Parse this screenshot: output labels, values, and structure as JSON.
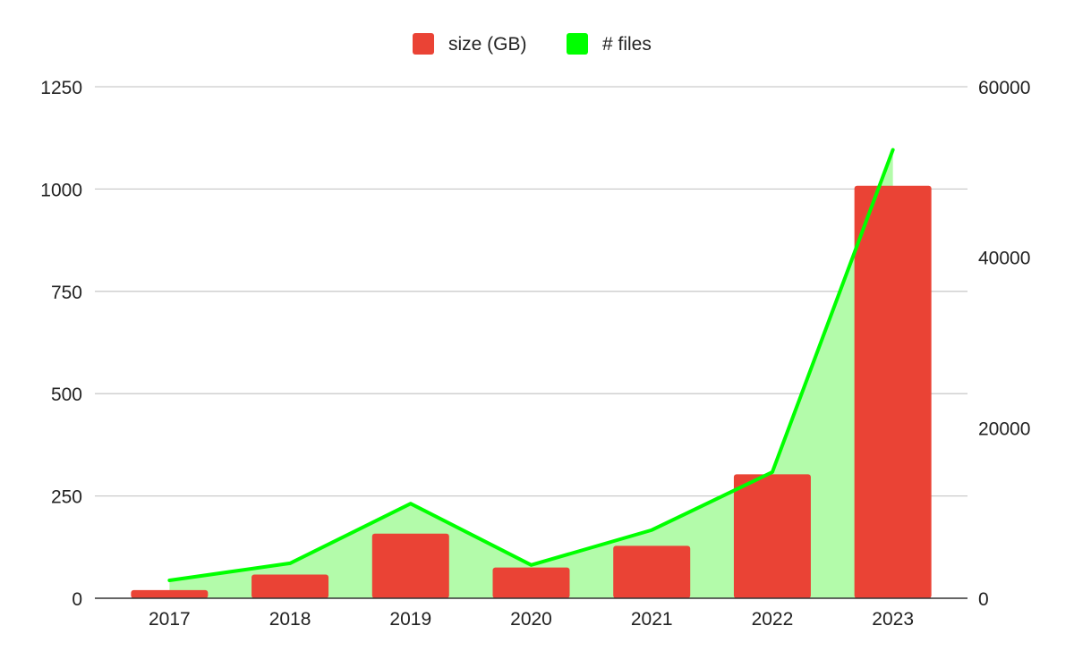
{
  "chart_data": {
    "type": "bar",
    "title": "",
    "categories": [
      "2017",
      "2018",
      "2019",
      "2020",
      "2021",
      "2022",
      "2023"
    ],
    "series": [
      {
        "name": "size (GB)",
        "type": "bar",
        "axis": "left",
        "color": "#ea4335",
        "values": [
          20,
          58,
          158,
          75,
          128,
          303,
          1008
        ]
      },
      {
        "name": "# files",
        "type": "area",
        "axis": "right",
        "color": "#00ff00",
        "fill_color": "#b3fbaa",
        "values": [
          2100,
          4100,
          11100,
          3900,
          8000,
          14800,
          52600
        ]
      }
    ],
    "y_left": {
      "min": 0,
      "max": 1250,
      "ticks": [
        "0",
        "250",
        "500",
        "750",
        "1000",
        "1250"
      ]
    },
    "y_right": {
      "min": 0,
      "max": 60000,
      "ticks": [
        "0",
        "20000",
        "40000",
        "60000"
      ]
    },
    "grid": true,
    "legend_position": "top-center"
  }
}
